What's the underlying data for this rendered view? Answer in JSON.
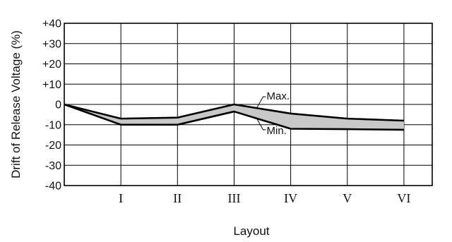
{
  "chart_data": {
    "type": "area",
    "ylabel": "Drift of Release Voltage (%)",
    "xlabel": "Layout",
    "x": [
      0,
      1,
      2,
      3,
      4,
      5,
      6
    ],
    "categories": [
      "I",
      "II",
      "III",
      "IV",
      "V",
      "VI"
    ],
    "series": [
      {
        "name": "Max.",
        "values": [
          0,
          -7,
          -6.5,
          0,
          -4.5,
          -7,
          -8
        ]
      },
      {
        "name": "Min.",
        "values": [
          0,
          -10,
          -10,
          -3.5,
          -12,
          -12.2,
          -12.5
        ]
      }
    ],
    "ylim": [
      -40,
      40
    ],
    "xlim": [
      0,
      6.5
    ],
    "yticks": [
      40,
      30,
      20,
      10,
      0,
      -10,
      -20,
      -30,
      -40
    ],
    "ytick_labels": [
      "+40",
      "+30",
      "+20",
      "+10",
      "0",
      "-10",
      "-20",
      "-30",
      "-40"
    ],
    "grid": true,
    "fill_between": true,
    "annotations": [
      {
        "text": "Max.",
        "series": "Max.",
        "x": 3.4
      },
      {
        "text": "Min.",
        "series": "Min.",
        "x": 3.4
      }
    ]
  }
}
